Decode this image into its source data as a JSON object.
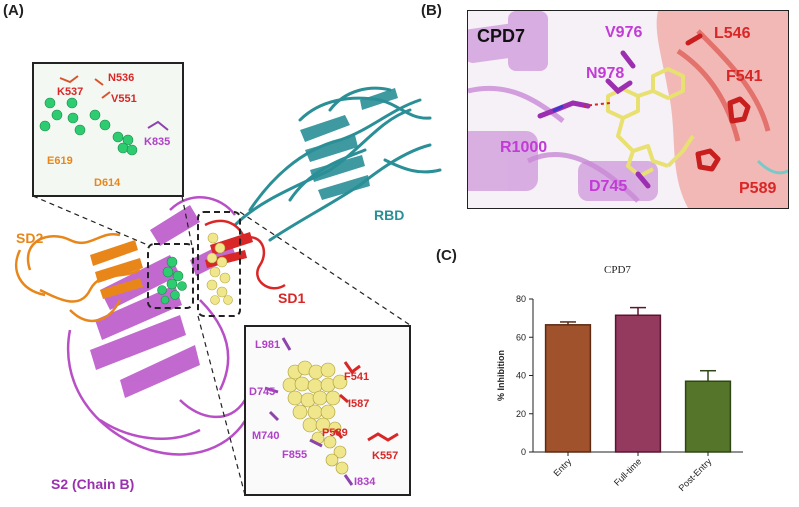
{
  "panels": {
    "A": "(A)",
    "B": "(B)",
    "C": "(C)"
  },
  "panelA": {
    "domains": {
      "sd2": "SD2",
      "rbd": "RBD",
      "sd1": "SD1",
      "s2": "S2 (Chain B)"
    },
    "inset_top_residues": [
      "K537",
      "N536",
      "V551",
      "K835",
      "E619",
      "D614"
    ],
    "inset_bottom_residues": [
      "L981",
      "D745",
      "M740",
      "F855",
      "F541",
      "I587",
      "P589",
      "K557",
      "I834"
    ]
  },
  "panelB": {
    "ligand": "CPD7",
    "residues": [
      "V976",
      "N978",
      "R1000",
      "D745",
      "L546",
      "F541",
      "P589"
    ]
  },
  "chart_data": {
    "type": "bar",
    "title": "CPD7",
    "ylabel": "% Inhibition",
    "xlabel": "",
    "categories": [
      "Entry",
      "Full-time",
      "Post-Entry"
    ],
    "values": [
      66.5,
      71.5,
      37
    ],
    "errors": [
      1.5,
      4,
      5.5
    ],
    "ylim": [
      0,
      80
    ],
    "yticks": [
      0,
      20,
      40,
      60,
      80
    ],
    "colors": [
      "#a0522d",
      "#943a5e",
      "#55752a"
    ],
    "edge_colors": [
      "#5c2a12",
      "#5a1530",
      "#2e4515"
    ],
    "grid": false
  }
}
